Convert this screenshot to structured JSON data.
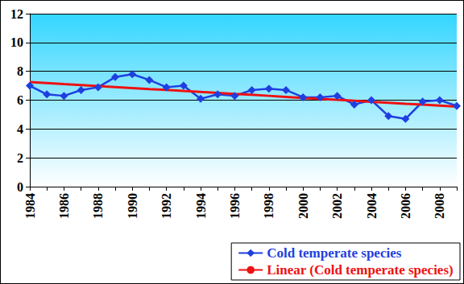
{
  "chart_data": {
    "type": "line",
    "categories": [
      "1984",
      null,
      "1986",
      null,
      "1988",
      null,
      "1990",
      null,
      "1992",
      null,
      "1994",
      null,
      "1996",
      null,
      "1998",
      null,
      "2000",
      null,
      "2002",
      null,
      "2004",
      null,
      "2006",
      null,
      "2008",
      null
    ],
    "series": [
      {
        "name": "Cold temperate species",
        "color": "#1f3fe0",
        "marker": "diamond",
        "line_style": "solid",
        "values": [
          7.0,
          6.4,
          6.3,
          6.7,
          6.9,
          7.6,
          7.8,
          7.4,
          6.9,
          7.0,
          6.1,
          6.4,
          6.3,
          6.7,
          6.8,
          6.7,
          6.2,
          6.2,
          6.3,
          5.7,
          6.0,
          4.9,
          4.7,
          5.9,
          6.0,
          5.6
        ]
      },
      {
        "name": "Linear (Cold temperate species)",
        "color": "#ee1111",
        "marker": "none",
        "line_style": "solid",
        "values": [
          7.25,
          7.18,
          7.11,
          7.05,
          6.98,
          6.91,
          6.84,
          6.77,
          6.71,
          6.64,
          6.57,
          6.5,
          6.43,
          6.37,
          6.3,
          6.23,
          6.16,
          6.09,
          6.03,
          5.96,
          5.89,
          5.82,
          5.75,
          5.69,
          5.62,
          5.55
        ]
      }
    ],
    "ylim": [
      0,
      12
    ],
    "yticks": [
      0,
      2,
      4,
      6,
      8,
      10,
      12
    ],
    "grid": true,
    "legend": "lower right"
  }
}
